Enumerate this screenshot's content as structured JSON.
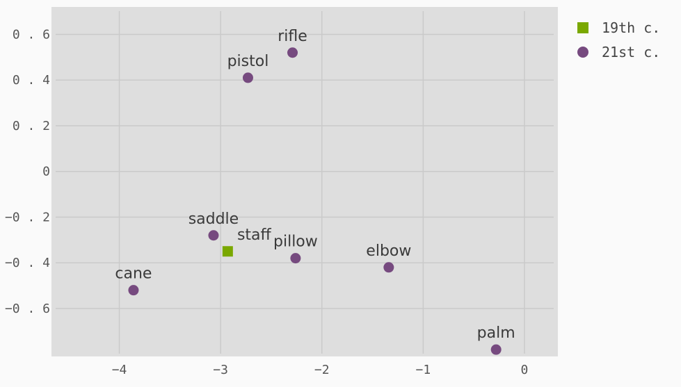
{
  "chart_data": {
    "type": "scatter",
    "title": "",
    "xlabel": "",
    "ylabel": "",
    "xlim": [
      -4.67,
      0.33
    ],
    "ylim": [
      -0.81,
      0.72
    ],
    "xticks": [
      -4,
      -3,
      -2,
      -1,
      0
    ],
    "yticks": [
      0.6,
      0.4,
      0.2,
      0,
      -0.2,
      -0.4,
      -0.6
    ],
    "grid": true,
    "legend_position": "top-right",
    "series": [
      {
        "name": "19th c.",
        "marker": "square",
        "color": "#7aa800",
        "points": [
          {
            "label": "staff",
            "x": -2.93,
            "y": -0.35
          }
        ]
      },
      {
        "name": "21st c.",
        "marker": "circle",
        "color": "#764a7f",
        "points": [
          {
            "label": "rifle",
            "x": -2.29,
            "y": 0.52
          },
          {
            "label": "pistol",
            "x": -2.73,
            "y": 0.41
          },
          {
            "label": "saddle",
            "x": -3.07,
            "y": -0.28
          },
          {
            "label": "pillow",
            "x": -2.26,
            "y": -0.38
          },
          {
            "label": "elbow",
            "x": -1.34,
            "y": -0.42
          },
          {
            "label": "cane",
            "x": -3.86,
            "y": -0.52
          },
          {
            "label": "palm",
            "x": -0.28,
            "y": -0.78
          }
        ]
      }
    ]
  }
}
